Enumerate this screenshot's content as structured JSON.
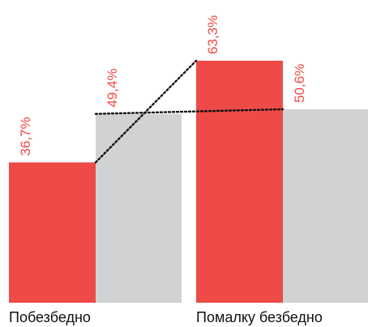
{
  "chart_data": {
    "type": "bar",
    "categories": [
      "Побезбедно",
      "Помалку безбедно"
    ],
    "series": [
      {
        "values": [
          36.7,
          63.3
        ],
        "labels": [
          "36,7%",
          "63,3%"
        ],
        "color": "#ee4b48"
      },
      {
        "values": [
          49.4,
          50.6
        ],
        "labels": [
          "49,4%",
          "50,6%"
        ],
        "color": "#d1d2d4"
      }
    ],
    "connectors": "dotted lines join the top of each red bar and the top of each grey bar across the two groups",
    "ylim": [
      0,
      63.3
    ],
    "grid": false,
    "legend": "none"
  }
}
